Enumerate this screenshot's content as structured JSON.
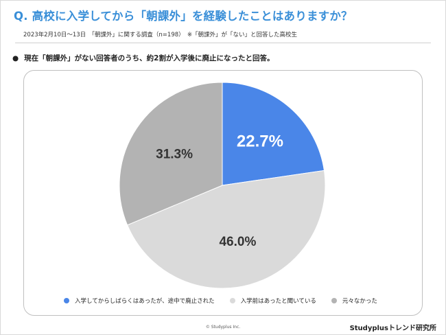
{
  "title": "Q. 高校に入学してから「朝課外」を経験したことはありますか？",
  "subtitle": "2023年2月10日〜13日　「朝課外」に関する調査（n=198）　※「朝課外」が「ない」と回答した高校生",
  "bullet_mark": "●",
  "bullet_text": "現在「朝課外」がない回答者のうち、約2割が入学後に廃止になったと回答。",
  "copyright": "© Studyplus Inc.",
  "brand": "Studyplusトレンド研究所",
  "chart_data": {
    "type": "pie",
    "title": "",
    "categories": [
      "入学してからしばらくはあったが、途中で廃止された",
      "入学前はあったと聞いている",
      "元々なかった"
    ],
    "values": [
      22.7,
      46.0,
      31.3
    ],
    "labels": [
      "22.7%",
      "46.0%",
      "31.3%"
    ],
    "colors": [
      "#4a86e8",
      "#dadada",
      "#b3b3b3"
    ],
    "label_colors": [
      "#ffffff",
      "#333333",
      "#333333"
    ],
    "start_angle": "12 o'clock",
    "direction": "clockwise",
    "legend_position": "bottom"
  }
}
